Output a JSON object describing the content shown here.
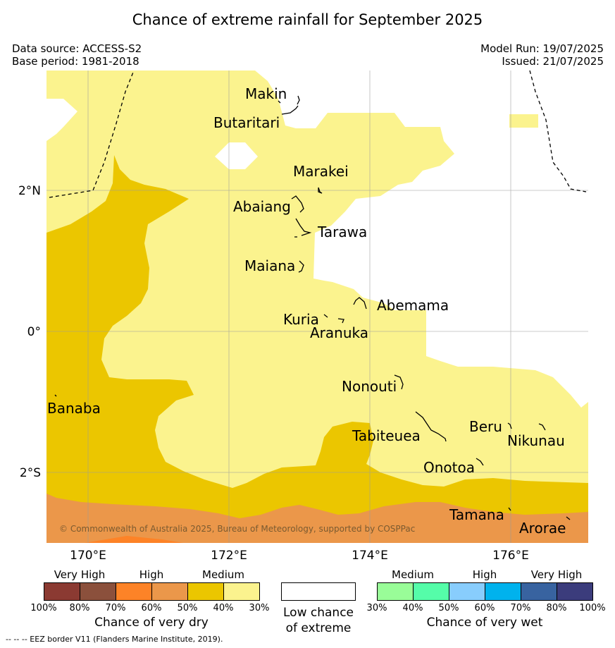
{
  "title": "Chance of extreme rainfall for September 2025",
  "meta": {
    "data_source": "Data source: ACCESS-S2",
    "base_period": "Base period: 1981-2018",
    "model_run": "Model Run: 19/07/2025",
    "issued": "Issued: 21/07/2025"
  },
  "map": {
    "lon_range": [
      169.4,
      177.1
    ],
    "lat_range": [
      -3.0,
      3.7
    ],
    "lon_ticks": [
      "170°E",
      "172°E",
      "174°E",
      "176°E"
    ],
    "lat_ticks": [
      "2°N",
      "0°",
      "2°S"
    ],
    "place_labels": [
      "Makin",
      "Butaritari",
      "Marakei",
      "Abaiang",
      "Tarawa",
      "Maiana",
      "Abemama",
      "Kuria",
      "Aranuka",
      "Nonouti",
      "Banaba",
      "Tabiteuea",
      "Beru",
      "Nikunau",
      "Onotoa",
      "Tamana",
      "Arorae"
    ],
    "copyright": "© Commonwealth of Australia 2025, Bureau of Meteorology, supported by COSPPac",
    "colors": {
      "medium_dry_30_40": "#fbf38e",
      "medium_dry_40_50": "#ebc600",
      "high_dry_50_60": "#eb974a",
      "high_dry_60_70": "#fd8327",
      "low_chance": "#ffffff"
    }
  },
  "legend": {
    "dry": {
      "groups": [
        "Very High",
        "High",
        "Medium"
      ],
      "ticks": [
        "100%",
        "80%",
        "70%",
        "60%",
        "50%",
        "40%",
        "30%"
      ],
      "colors": [
        "#8b3a32",
        "#8b503c",
        "#fd8327",
        "#eb974a",
        "#ebc600",
        "#fbf38e"
      ],
      "caption": "Chance of very dry"
    },
    "neutral": {
      "caption_line1": "Low chance",
      "caption_line2": "of extreme"
    },
    "wet": {
      "groups": [
        "Medium",
        "High",
        "Very High"
      ],
      "ticks": [
        "30%",
        "40%",
        "50%",
        "60%",
        "70%",
        "80%",
        "100%"
      ],
      "colors": [
        "#99fd98",
        "#55fda9",
        "#88cdfd",
        "#00b2ed",
        "#3863a0",
        "#3b3c7c"
      ],
      "caption": "Chance of very wet"
    }
  },
  "footnote": "--  --  -- EEZ border V11 (Flanders Marine Institute, 2019)."
}
